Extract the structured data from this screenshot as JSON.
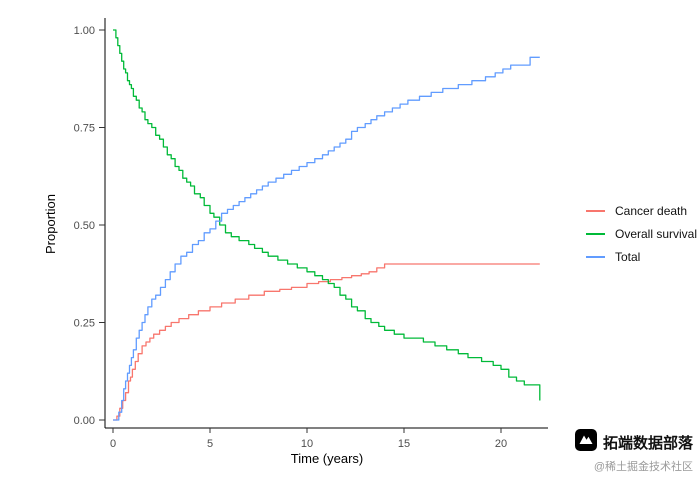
{
  "chart_data": {
    "type": "line",
    "subtype": "step-survival-curves",
    "title": "",
    "xlabel": "Time (years)",
    "ylabel": "Proportion",
    "xlim": [
      0,
      22
    ],
    "ylim": [
      0,
      1
    ],
    "x_ticks": [
      0,
      5,
      10,
      15,
      20
    ],
    "x_tick_labels": [
      "0",
      "5",
      "10",
      "15",
      "20"
    ],
    "y_ticks": [
      0,
      0.25,
      0.5,
      0.75,
      1.0
    ],
    "y_tick_labels": [
      "0.00",
      "0.25",
      "0.50",
      "0.75",
      "1.00"
    ],
    "grid": false,
    "legend_position": "right",
    "axis_color": "#000000",
    "tick_label_color": "#4d4d4d",
    "series": [
      {
        "name": "Cancer death",
        "color": "#F8766D",
        "points": [
          [
            0,
            0
          ],
          [
            0.2,
            0.01
          ],
          [
            0.35,
            0.03
          ],
          [
            0.5,
            0.05
          ],
          [
            0.65,
            0.07
          ],
          [
            0.8,
            0.1
          ],
          [
            0.9,
            0.11
          ],
          [
            1.0,
            0.13
          ],
          [
            1.15,
            0.15
          ],
          [
            1.3,
            0.17
          ],
          [
            1.5,
            0.19
          ],
          [
            1.7,
            0.2
          ],
          [
            1.9,
            0.21
          ],
          [
            2.1,
            0.22
          ],
          [
            2.4,
            0.23
          ],
          [
            2.7,
            0.24
          ],
          [
            3.0,
            0.25
          ],
          [
            3.4,
            0.26
          ],
          [
            3.9,
            0.27
          ],
          [
            4.4,
            0.28
          ],
          [
            5.0,
            0.29
          ],
          [
            5.6,
            0.3
          ],
          [
            6.3,
            0.31
          ],
          [
            7.0,
            0.32
          ],
          [
            7.8,
            0.33
          ],
          [
            8.6,
            0.335
          ],
          [
            9.2,
            0.34
          ],
          [
            10.0,
            0.35
          ],
          [
            10.6,
            0.355
          ],
          [
            11.2,
            0.36
          ],
          [
            11.8,
            0.365
          ],
          [
            12.3,
            0.37
          ],
          [
            12.8,
            0.375
          ],
          [
            13.2,
            0.38
          ],
          [
            13.6,
            0.39
          ],
          [
            14.0,
            0.4
          ],
          [
            22.0,
            0.4
          ]
        ]
      },
      {
        "name": "Overall survival",
        "color": "#00BA38",
        "points": [
          [
            0,
            1.0
          ],
          [
            0.15,
            0.98
          ],
          [
            0.25,
            0.96
          ],
          [
            0.35,
            0.94
          ],
          [
            0.45,
            0.92
          ],
          [
            0.55,
            0.9
          ],
          [
            0.65,
            0.89
          ],
          [
            0.75,
            0.87
          ],
          [
            0.85,
            0.86
          ],
          [
            0.95,
            0.85
          ],
          [
            1.05,
            0.83
          ],
          [
            1.2,
            0.82
          ],
          [
            1.35,
            0.8
          ],
          [
            1.5,
            0.79
          ],
          [
            1.65,
            0.77
          ],
          [
            1.8,
            0.76
          ],
          [
            2.0,
            0.75
          ],
          [
            2.2,
            0.73
          ],
          [
            2.4,
            0.72
          ],
          [
            2.6,
            0.7
          ],
          [
            2.8,
            0.68
          ],
          [
            3.0,
            0.67
          ],
          [
            3.2,
            0.65
          ],
          [
            3.4,
            0.64
          ],
          [
            3.6,
            0.62
          ],
          [
            3.8,
            0.61
          ],
          [
            4.0,
            0.6
          ],
          [
            4.2,
            0.58
          ],
          [
            4.5,
            0.57
          ],
          [
            4.7,
            0.55
          ],
          [
            5.0,
            0.53
          ],
          [
            5.2,
            0.52
          ],
          [
            5.5,
            0.5
          ],
          [
            5.8,
            0.48
          ],
          [
            6.1,
            0.47
          ],
          [
            6.5,
            0.46
          ],
          [
            7.0,
            0.45
          ],
          [
            7.3,
            0.44
          ],
          [
            7.7,
            0.43
          ],
          [
            8.0,
            0.42
          ],
          [
            8.5,
            0.41
          ],
          [
            9.0,
            0.4
          ],
          [
            9.5,
            0.39
          ],
          [
            10.0,
            0.38
          ],
          [
            10.4,
            0.37
          ],
          [
            10.8,
            0.36
          ],
          [
            11.1,
            0.35
          ],
          [
            11.4,
            0.34
          ],
          [
            11.7,
            0.32
          ],
          [
            12.0,
            0.31
          ],
          [
            12.3,
            0.29
          ],
          [
            12.6,
            0.28
          ],
          [
            13.0,
            0.26
          ],
          [
            13.3,
            0.25
          ],
          [
            13.7,
            0.24
          ],
          [
            14.0,
            0.23
          ],
          [
            14.5,
            0.22
          ],
          [
            15.0,
            0.21
          ],
          [
            16.0,
            0.2
          ],
          [
            16.6,
            0.19
          ],
          [
            17.2,
            0.18
          ],
          [
            17.8,
            0.17
          ],
          [
            18.3,
            0.16
          ],
          [
            19.0,
            0.15
          ],
          [
            19.6,
            0.14
          ],
          [
            20.0,
            0.13
          ],
          [
            20.4,
            0.11
          ],
          [
            20.8,
            0.1
          ],
          [
            21.2,
            0.09
          ],
          [
            21.8,
            0.09
          ],
          [
            22.0,
            0.05
          ]
        ]
      },
      {
        "name": "Total",
        "color": "#619CFF",
        "points": [
          [
            0,
            0
          ],
          [
            0.3,
            0.02
          ],
          [
            0.45,
            0.05
          ],
          [
            0.55,
            0.08
          ],
          [
            0.65,
            0.1
          ],
          [
            0.75,
            0.12
          ],
          [
            0.85,
            0.14
          ],
          [
            0.95,
            0.16
          ],
          [
            1.05,
            0.18
          ],
          [
            1.2,
            0.21
          ],
          [
            1.35,
            0.23
          ],
          [
            1.5,
            0.25
          ],
          [
            1.65,
            0.27
          ],
          [
            1.8,
            0.29
          ],
          [
            2.0,
            0.31
          ],
          [
            2.2,
            0.32
          ],
          [
            2.45,
            0.34
          ],
          [
            2.7,
            0.36
          ],
          [
            2.95,
            0.38
          ],
          [
            3.2,
            0.4
          ],
          [
            3.5,
            0.42
          ],
          [
            3.8,
            0.43
          ],
          [
            4.1,
            0.45
          ],
          [
            4.4,
            0.46
          ],
          [
            4.7,
            0.48
          ],
          [
            5.0,
            0.49
          ],
          [
            5.3,
            0.51
          ],
          [
            5.6,
            0.53
          ],
          [
            5.9,
            0.54
          ],
          [
            6.2,
            0.55
          ],
          [
            6.5,
            0.56
          ],
          [
            6.8,
            0.57
          ],
          [
            7.1,
            0.58
          ],
          [
            7.4,
            0.59
          ],
          [
            7.7,
            0.6
          ],
          [
            8.0,
            0.61
          ],
          [
            8.4,
            0.62
          ],
          [
            8.8,
            0.63
          ],
          [
            9.2,
            0.64
          ],
          [
            9.6,
            0.65
          ],
          [
            10.0,
            0.66
          ],
          [
            10.4,
            0.67
          ],
          [
            10.8,
            0.68
          ],
          [
            11.1,
            0.69
          ],
          [
            11.4,
            0.7
          ],
          [
            11.7,
            0.71
          ],
          [
            12.0,
            0.72
          ],
          [
            12.3,
            0.74
          ],
          [
            12.6,
            0.75
          ],
          [
            13.0,
            0.76
          ],
          [
            13.3,
            0.77
          ],
          [
            13.6,
            0.78
          ],
          [
            14.0,
            0.79
          ],
          [
            14.4,
            0.8
          ],
          [
            14.8,
            0.81
          ],
          [
            15.2,
            0.82
          ],
          [
            15.8,
            0.83
          ],
          [
            16.4,
            0.84
          ],
          [
            17.0,
            0.85
          ],
          [
            17.8,
            0.86
          ],
          [
            18.5,
            0.87
          ],
          [
            19.2,
            0.88
          ],
          [
            19.7,
            0.89
          ],
          [
            20.1,
            0.9
          ],
          [
            20.5,
            0.91
          ],
          [
            21.5,
            0.93
          ],
          [
            22.0,
            0.93
          ]
        ]
      }
    ]
  },
  "watermark": {
    "title": "拓端数据部落",
    "subtitle": "@稀土掘金技术社区",
    "logo": "mountain-logo-icon"
  }
}
